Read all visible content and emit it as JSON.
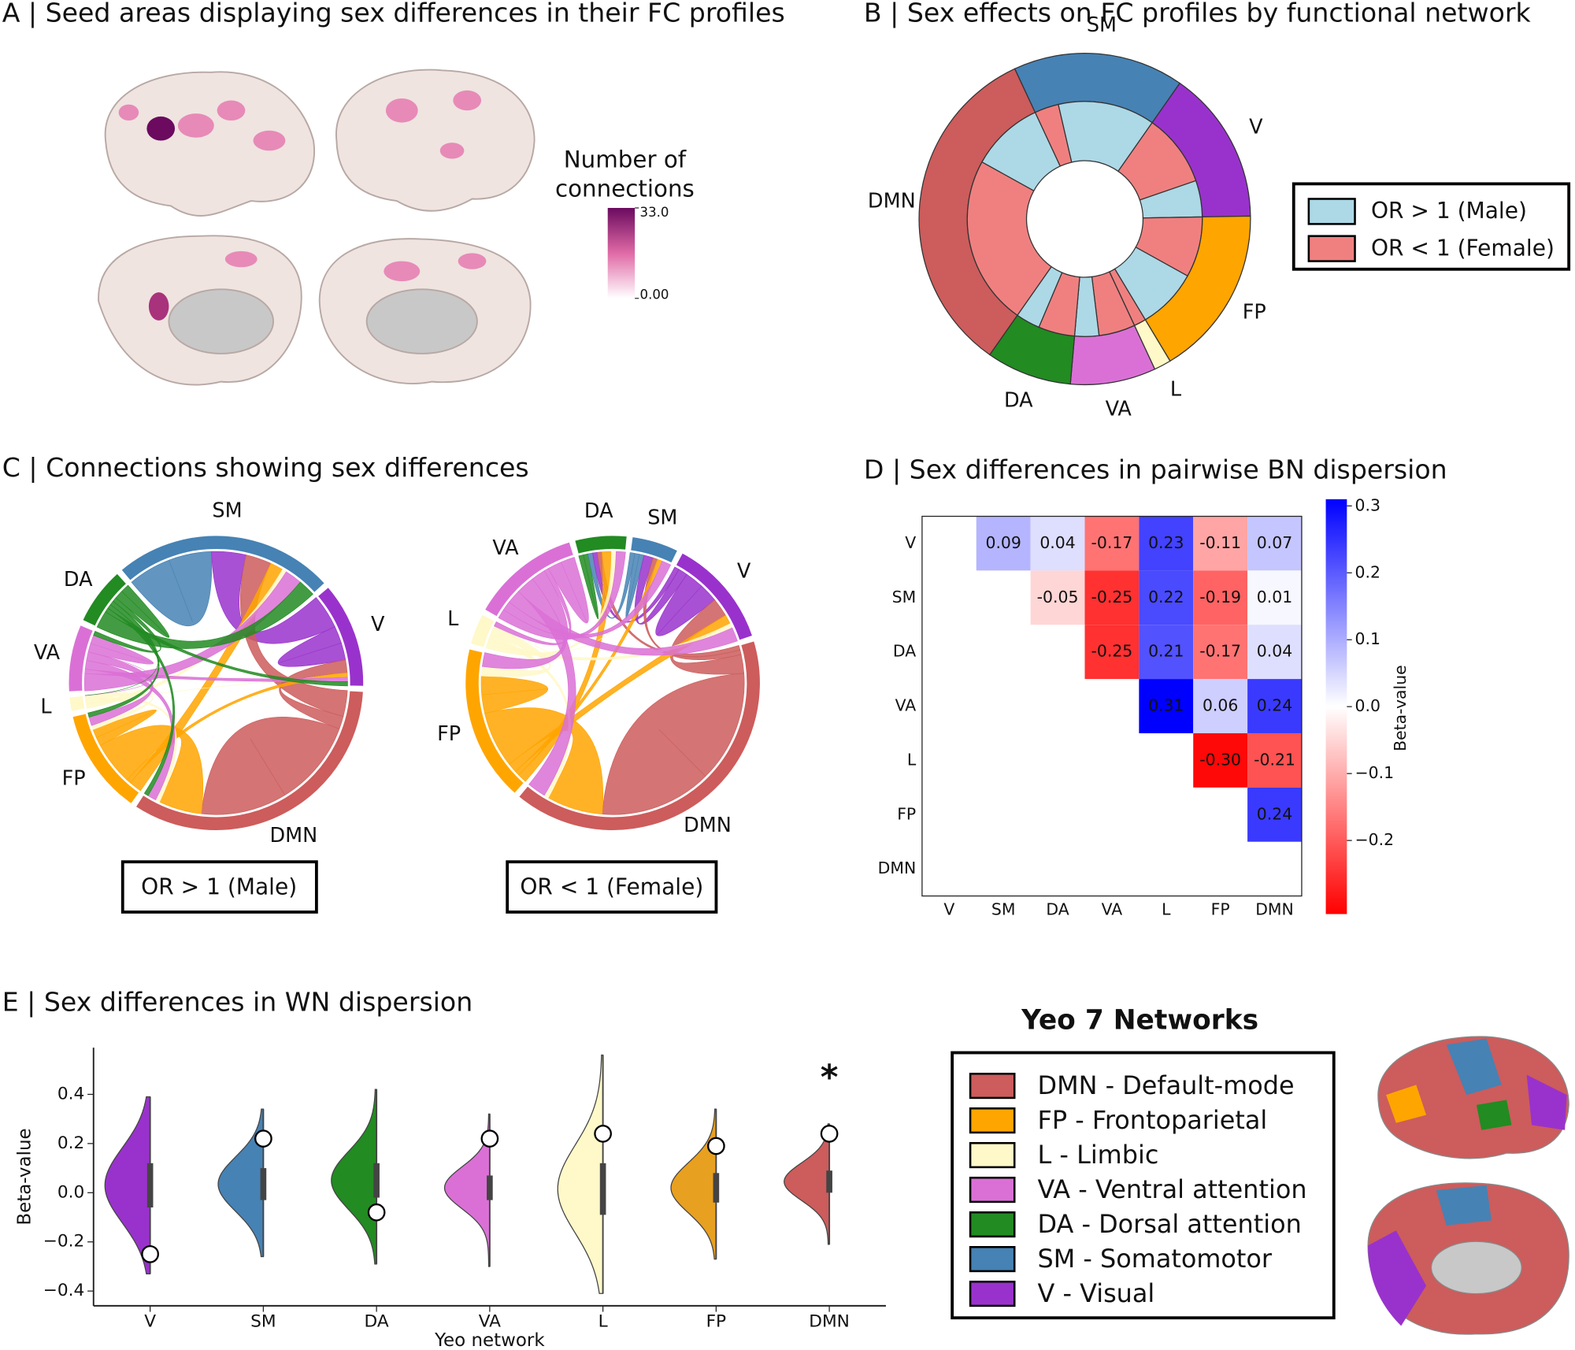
{
  "chart_data": [
    {
      "type": "brainmap",
      "title": "A | Seed areas displaying sex differences in their FC profiles",
      "colorbar_label": [
        "Number of",
        "connections"
      ],
      "clim": [
        0,
        33
      ],
      "cticks": [
        {
          "value": 33,
          "label": "33.0"
        },
        {
          "value": 0,
          "label": "0.00"
        }
      ],
      "colors": [
        "#ffffff",
        "#e06aa6",
        "#6b0a5f"
      ]
    },
    {
      "type": "sunburst",
      "title": "B | Sex effects on FC profiles by functional network",
      "categories": [
        "SM",
        "V",
        "FP",
        "L",
        "VA",
        "DA",
        "DMN"
      ],
      "colors": [
        "#4682b4",
        "#9932cc",
        "#ffa500",
        "#fff8c8",
        "#da70d6",
        "#228b22",
        "#cd5c5c"
      ],
      "values": [
        10,
        9,
        10,
        1,
        5,
        5,
        20
      ],
      "series": [
        {
          "name": "OR > 1 (Male)",
          "color": "#add8e6",
          "values": [
            8,
            3,
            5,
            0,
            2,
            2,
            6
          ]
        },
        {
          "name": "OR < 1 (Female)",
          "color": "#f08080",
          "values": [
            2,
            6,
            5,
            1,
            3,
            3,
            14
          ]
        }
      ]
    },
    {
      "type": "chord",
      "title": "C | Connections showing sex differences",
      "diagrams": [
        {
          "subtitle": "OR > 1 (Male)",
          "nodes": [
            "SM",
            "V",
            "DMN",
            "FP",
            "L",
            "VA",
            "DA"
          ],
          "colors": [
            "#4682b4",
            "#9932cc",
            "#cd5c5c",
            "#ffa500",
            "#fff8c8",
            "#da70d6",
            "#228b22"
          ],
          "matrix": [
            [
              10
            ],
            [
              8,
              4
            ],
            [
              6,
              3,
              20
            ],
            [
              3,
              1,
              10,
              2
            ],
            [
              1,
              0,
              1,
              1,
              0
            ],
            [
              4,
              1,
              2,
              2,
              0,
              2
            ],
            [
              4,
              1,
              1,
              1,
              0,
              1,
              2
            ]
          ]
        },
        {
          "subtitle": "OR < 1 (Female)",
          "nodes": [
            "DA",
            "SM",
            "V",
            "DMN",
            "FP",
            "L",
            "VA"
          ],
          "colors": [
            "#228b22",
            "#4682b4",
            "#9932cc",
            "#cd5c5c",
            "#ffa500",
            "#fff8c8",
            "#da70d6"
          ],
          "matrix": [
            [
              1
            ],
            [
              1,
              1
            ],
            [
              1,
              2,
              4
            ],
            [
              1,
              1,
              4,
              24
            ],
            [
              2,
              1,
              2,
              12,
              4
            ],
            [
              1,
              0,
              1,
              1,
              2,
              0
            ],
            [
              2,
              2,
              3,
              4,
              3,
              1,
              3
            ]
          ]
        }
      ]
    },
    {
      "type": "heatmap",
      "title": "D | Sex differences in pairwise BN dispersion",
      "categories": [
        "V",
        "SM",
        "DA",
        "VA",
        "L",
        "FP",
        "DMN"
      ],
      "values": [
        [
          null,
          0.09,
          0.04,
          -0.17,
          0.23,
          -0.11,
          0.07
        ],
        [
          null,
          null,
          -0.05,
          -0.25,
          0.22,
          -0.19,
          0.01
        ],
        [
          null,
          null,
          null,
          -0.25,
          0.21,
          -0.17,
          0.04
        ],
        [
          null,
          null,
          null,
          null,
          0.31,
          0.06,
          0.24
        ],
        [
          null,
          null,
          null,
          null,
          null,
          -0.3,
          -0.21
        ],
        [
          null,
          null,
          null,
          null,
          null,
          null,
          0.24
        ],
        [
          null,
          null,
          null,
          null,
          null,
          null,
          null
        ]
      ],
      "value_labels": [
        [
          null,
          "0.09",
          "0.04",
          "-0.17",
          "0.23",
          "-0.11",
          "0.07"
        ],
        [
          null,
          null,
          "-0.05",
          "-0.25",
          "0.22",
          "-0.19",
          "0.01"
        ],
        [
          null,
          null,
          null,
          "-0.25",
          "0.21",
          "-0.17",
          "0.04"
        ],
        [
          null,
          null,
          null,
          null,
          "0.31",
          "0.06",
          "0.24"
        ],
        [
          null,
          null,
          null,
          null,
          null,
          "-0.30",
          "-0.21"
        ],
        [
          null,
          null,
          null,
          null,
          null,
          null,
          "0.24"
        ],
        [
          null,
          null,
          null,
          null,
          null,
          null,
          null
        ]
      ],
      "clim": [
        -0.31,
        0.31
      ],
      "cticks": [
        0.3,
        0.2,
        0.1,
        {
          "value": 0,
          "label": "0.0"
        },
        {
          "value": -0.1,
          "label": "−0.1"
        },
        {
          "value": -0.2,
          "label": "−0.2"
        }
      ],
      "colorbar_label": "Beta-value",
      "colors": [
        "#ff0000",
        "#ffffff",
        "#0000ff"
      ]
    },
    {
      "type": "violin",
      "title": "E | Sex differences in WN dispersion",
      "categories": [
        "V",
        "SM",
        "DA",
        "VA",
        "L",
        "FP",
        "DMN"
      ],
      "colors": [
        "#9932cc",
        "#4682b4",
        "#228b22",
        "#da70d6",
        "#fff8c8",
        "#e8a020",
        "#cd5c5c"
      ],
      "values": [
        -0.25,
        0.22,
        -0.08,
        0.22,
        0.24,
        0.19,
        0.24
      ],
      "ranges": [
        [
          -0.33,
          0.39
        ],
        [
          -0.26,
          0.34
        ],
        [
          -0.29,
          0.42
        ],
        [
          -0.3,
          0.32
        ],
        [
          -0.41,
          0.56
        ],
        [
          -0.27,
          0.34
        ],
        [
          -0.21,
          0.28
        ]
      ],
      "quartiles": [
        [
          -0.06,
          0.12
        ],
        [
          -0.03,
          0.1
        ],
        [
          -0.02,
          0.12
        ],
        [
          -0.03,
          0.07
        ],
        [
          -0.09,
          0.12
        ],
        [
          -0.04,
          0.08
        ],
        [
          0,
          0.09
        ]
      ],
      "ylim": [
        -0.46,
        0.59
      ],
      "yticks": [
        0.4,
        0.2,
        {
          "value": 0,
          "label": "0.0"
        },
        {
          "value": -0.2,
          "label": "−0.2"
        },
        {
          "value": -0.4,
          "label": "−0.4"
        }
      ],
      "ylabel": "Beta-value",
      "xlabel": "Yeo network",
      "annotation": "*"
    },
    {
      "type": "legend",
      "title": "Yeo 7 Networks",
      "series": [
        {
          "name": "DMN - Default-mode",
          "color": "#cd5c5c"
        },
        {
          "name": "FP - Frontoparietal",
          "color": "#ffa500"
        },
        {
          "name": "L - Limbic",
          "color": "#fff8c8"
        },
        {
          "name": "VA - Ventral attention",
          "color": "#da70d6"
        },
        {
          "name": "DA - Dorsal attention",
          "color": "#228b22"
        },
        {
          "name": "SM - Somatomotor",
          "color": "#4682b4"
        },
        {
          "name": "V - Visual",
          "color": "#9932cc"
        }
      ]
    }
  ]
}
